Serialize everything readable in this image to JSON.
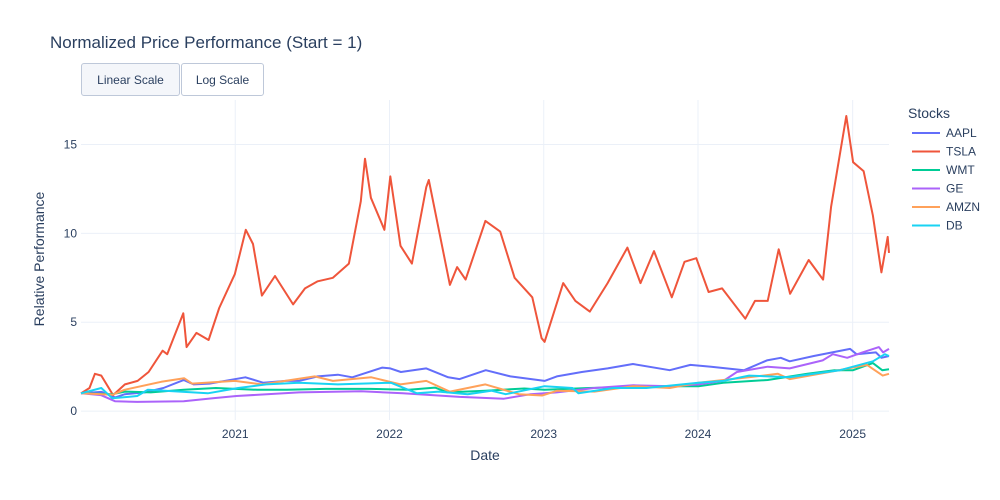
{
  "chart_data": {
    "type": "line",
    "title": "Normalized Price Performance (Start = 1)",
    "xlabel": "Date",
    "ylabel": "Relative Performance",
    "xlim": [
      "2020-01-02",
      "2025-03-28"
    ],
    "ylim": [
      -0.5,
      17.5
    ],
    "x_ticks": [
      "2021",
      "2022",
      "2023",
      "2024",
      "2025"
    ],
    "y_ticks": [
      0,
      5,
      10,
      15
    ],
    "grid": true,
    "legend": {
      "title": "Stocks",
      "placement": "right"
    },
    "buttons": [
      "Linear Scale",
      "Log Scale"
    ],
    "active_button": "Linear Scale",
    "series": [
      {
        "name": "AAPL",
        "color": "#636efa",
        "points": [
          [
            "2020-01-02",
            1.0
          ],
          [
            "2020-02-20",
            1.08
          ],
          [
            "2020-03-23",
            0.77
          ],
          [
            "2020-04-15",
            0.95
          ],
          [
            "2020-06-01",
            1.05
          ],
          [
            "2020-07-15",
            1.3
          ],
          [
            "2020-09-01",
            1.75
          ],
          [
            "2020-09-25",
            1.5
          ],
          [
            "2020-11-01",
            1.55
          ],
          [
            "2021-01-25",
            1.9
          ],
          [
            "2021-03-08",
            1.6
          ],
          [
            "2021-05-01",
            1.7
          ],
          [
            "2021-06-01",
            1.7
          ],
          [
            "2021-07-15",
            1.95
          ],
          [
            "2021-09-01",
            2.05
          ],
          [
            "2021-10-05",
            1.9
          ],
          [
            "2021-12-15",
            2.45
          ],
          [
            "2022-01-03",
            2.4
          ],
          [
            "2022-01-28",
            2.2
          ],
          [
            "2022-03-29",
            2.4
          ],
          [
            "2022-05-20",
            1.9
          ],
          [
            "2022-06-16",
            1.8
          ],
          [
            "2022-08-17",
            2.3
          ],
          [
            "2022-10-14",
            1.95
          ],
          [
            "2023-01-03",
            1.7
          ],
          [
            "2023-02-01",
            1.95
          ],
          [
            "2023-04-01",
            2.2
          ],
          [
            "2023-06-01",
            2.4
          ],
          [
            "2023-07-31",
            2.65
          ],
          [
            "2023-10-26",
            2.3
          ],
          [
            "2023-12-14",
            2.6
          ],
          [
            "2024-02-01",
            2.5
          ],
          [
            "2024-04-19",
            2.3
          ],
          [
            "2024-06-12",
            2.85
          ],
          [
            "2024-07-15",
            3.0
          ],
          [
            "2024-08-05",
            2.8
          ],
          [
            "2024-10-01",
            3.1
          ],
          [
            "2024-12-26",
            3.5
          ],
          [
            "2025-01-10",
            3.2
          ],
          [
            "2025-02-25",
            3.3
          ],
          [
            "2025-03-10",
            3.0
          ],
          [
            "2025-03-28",
            3.1
          ]
        ]
      },
      {
        "name": "TSLA",
        "color": "#ef553b",
        "points": [
          [
            "2020-01-02",
            1.0
          ],
          [
            "2020-01-22",
            1.3
          ],
          [
            "2020-02-04",
            2.1
          ],
          [
            "2020-02-19",
            2.0
          ],
          [
            "2020-03-18",
            0.9
          ],
          [
            "2020-04-15",
            1.5
          ],
          [
            "2020-05-15",
            1.7
          ],
          [
            "2020-06-10",
            2.2
          ],
          [
            "2020-07-13",
            3.4
          ],
          [
            "2020-07-24",
            3.2
          ],
          [
            "2020-08-31",
            5.5
          ],
          [
            "2020-09-08",
            3.6
          ],
          [
            "2020-10-01",
            4.4
          ],
          [
            "2020-10-30",
            4.0
          ],
          [
            "2020-11-24",
            5.8
          ],
          [
            "2020-12-31",
            7.7
          ],
          [
            "2021-01-26",
            10.2
          ],
          [
            "2021-02-12",
            9.4
          ],
          [
            "2021-03-05",
            6.5
          ],
          [
            "2021-04-05",
            7.6
          ],
          [
            "2021-05-18",
            6.0
          ],
          [
            "2021-06-15",
            6.9
          ],
          [
            "2021-07-15",
            7.3
          ],
          [
            "2021-08-20",
            7.5
          ],
          [
            "2021-09-27",
            8.3
          ],
          [
            "2021-10-25",
            11.8
          ],
          [
            "2021-11-04",
            14.2
          ],
          [
            "2021-11-18",
            12.0
          ],
          [
            "2021-12-20",
            10.2
          ],
          [
            "2022-01-03",
            13.2
          ],
          [
            "2022-01-27",
            9.3
          ],
          [
            "2022-02-23",
            8.3
          ],
          [
            "2022-03-29",
            12.6
          ],
          [
            "2022-04-04",
            13.0
          ],
          [
            "2022-04-26",
            10.4
          ],
          [
            "2022-05-24",
            7.1
          ],
          [
            "2022-06-10",
            8.1
          ],
          [
            "2022-06-30",
            7.4
          ],
          [
            "2022-08-16",
            10.7
          ],
          [
            "2022-09-20",
            10.1
          ],
          [
            "2022-10-24",
            7.5
          ],
          [
            "2022-12-05",
            6.4
          ],
          [
            "2022-12-27",
            4.1
          ],
          [
            "2023-01-03",
            3.9
          ],
          [
            "2023-02-16",
            7.2
          ],
          [
            "2023-03-17",
            6.2
          ],
          [
            "2023-04-20",
            5.6
          ],
          [
            "2023-06-01",
            7.2
          ],
          [
            "2023-07-18",
            9.2
          ],
          [
            "2023-08-18",
            7.2
          ],
          [
            "2023-09-19",
            9.0
          ],
          [
            "2023-10-31",
            6.4
          ],
          [
            "2023-11-30",
            8.4
          ],
          [
            "2023-12-28",
            8.6
          ],
          [
            "2024-01-26",
            6.7
          ],
          [
            "2024-02-27",
            6.9
          ],
          [
            "2024-04-22",
            5.2
          ],
          [
            "2024-05-15",
            6.2
          ],
          [
            "2024-06-14",
            6.2
          ],
          [
            "2024-07-10",
            9.1
          ],
          [
            "2024-08-06",
            6.6
          ],
          [
            "2024-09-19",
            8.5
          ],
          [
            "2024-10-23",
            7.4
          ],
          [
            "2024-11-11",
            11.5
          ],
          [
            "2024-12-17",
            16.6
          ],
          [
            "2025-01-02",
            14.0
          ],
          [
            "2025-01-27",
            13.5
          ],
          [
            "2025-02-18",
            11.0
          ],
          [
            "2025-03-10",
            7.8
          ],
          [
            "2025-03-25",
            9.8
          ],
          [
            "2025-03-28",
            8.9
          ]
        ]
      },
      {
        "name": "WMT",
        "color": "#00cc96",
        "points": [
          [
            "2020-01-02",
            1.0
          ],
          [
            "2020-03-16",
            0.95
          ],
          [
            "2020-04-15",
            1.1
          ],
          [
            "2020-06-15",
            1.05
          ],
          [
            "2020-09-01",
            1.2
          ],
          [
            "2020-11-16",
            1.3
          ],
          [
            "2021-02-22",
            1.2
          ],
          [
            "2021-05-03",
            1.2
          ],
          [
            "2021-08-02",
            1.25
          ],
          [
            "2021-11-17",
            1.25
          ],
          [
            "2022-02-16",
            1.2
          ],
          [
            "2022-04-19",
            1.32
          ],
          [
            "2022-05-18",
            1.05
          ],
          [
            "2022-08-16",
            1.15
          ],
          [
            "2022-11-16",
            1.27
          ],
          [
            "2023-01-03",
            1.2
          ],
          [
            "2023-04-17",
            1.3
          ],
          [
            "2023-07-14",
            1.35
          ],
          [
            "2023-10-16",
            1.4
          ],
          [
            "2024-01-02",
            1.4
          ],
          [
            "2024-03-01",
            1.6
          ],
          [
            "2024-06-14",
            1.75
          ],
          [
            "2024-09-16",
            2.1
          ],
          [
            "2024-11-19",
            2.3
          ],
          [
            "2025-01-02",
            2.3
          ],
          [
            "2025-02-18",
            2.7
          ],
          [
            "2025-03-12",
            2.3
          ],
          [
            "2025-03-28",
            2.35
          ]
        ]
      },
      {
        "name": "GE",
        "color": "#ab63fa",
        "points": [
          [
            "2020-01-02",
            1.0
          ],
          [
            "2020-02-18",
            0.9
          ],
          [
            "2020-03-23",
            0.55
          ],
          [
            "2020-05-14",
            0.52
          ],
          [
            "2020-09-01",
            0.55
          ],
          [
            "2020-11-09",
            0.72
          ],
          [
            "2021-01-04",
            0.85
          ],
          [
            "2021-06-01",
            1.05
          ],
          [
            "2021-10-26",
            1.12
          ],
          [
            "2022-02-01",
            1.0
          ],
          [
            "2022-06-16",
            0.8
          ],
          [
            "2022-09-29",
            0.7
          ],
          [
            "2022-12-01",
            0.95
          ],
          [
            "2023-02-01",
            1.05
          ],
          [
            "2023-05-01",
            1.3
          ],
          [
            "2023-08-01",
            1.45
          ],
          [
            "2023-11-01",
            1.4
          ],
          [
            "2024-01-02",
            1.5
          ],
          [
            "2024-03-01",
            1.7
          ],
          [
            "2024-04-02",
            2.2
          ],
          [
            "2024-06-14",
            2.5
          ],
          [
            "2024-08-05",
            2.4
          ],
          [
            "2024-10-22",
            2.85
          ],
          [
            "2024-11-15",
            3.2
          ],
          [
            "2024-12-19",
            3.0
          ],
          [
            "2025-01-24",
            3.3
          ],
          [
            "2025-03-04",
            3.6
          ],
          [
            "2025-03-14",
            3.3
          ],
          [
            "2025-03-28",
            3.5
          ]
        ]
      },
      {
        "name": "AMZN",
        "color": "#ffa15a",
        "points": [
          [
            "2020-01-02",
            1.0
          ],
          [
            "2020-03-16",
            0.92
          ],
          [
            "2020-04-14",
            1.2
          ],
          [
            "2020-07-10",
            1.65
          ],
          [
            "2020-09-02",
            1.85
          ],
          [
            "2020-09-21",
            1.55
          ],
          [
            "2020-12-31",
            1.7
          ],
          [
            "2021-03-05",
            1.5
          ],
          [
            "2021-07-08",
            1.95
          ],
          [
            "2021-08-20",
            1.7
          ],
          [
            "2021-11-19",
            1.9
          ],
          [
            "2022-01-27",
            1.5
          ],
          [
            "2022-03-29",
            1.7
          ],
          [
            "2022-05-24",
            1.1
          ],
          [
            "2022-08-16",
            1.5
          ],
          [
            "2022-11-03",
            0.95
          ],
          [
            "2022-12-28",
            0.88
          ],
          [
            "2023-02-02",
            1.15
          ],
          [
            "2023-05-01",
            1.1
          ],
          [
            "2023-07-31",
            1.4
          ],
          [
            "2023-10-26",
            1.3
          ],
          [
            "2024-01-02",
            1.6
          ],
          [
            "2024-04-30",
            1.9
          ],
          [
            "2024-07-08",
            2.1
          ],
          [
            "2024-08-05",
            1.8
          ],
          [
            "2024-11-07",
            2.2
          ],
          [
            "2025-02-04",
            2.6
          ],
          [
            "2025-03-13",
            2.0
          ],
          [
            "2025-03-28",
            2.1
          ]
        ]
      },
      {
        "name": "DB",
        "color": "#19d3f3",
        "points": [
          [
            "2020-01-02",
            1.0
          ],
          [
            "2020-02-19",
            1.3
          ],
          [
            "2020-03-16",
            0.72
          ],
          [
            "2020-05-14",
            0.85
          ],
          [
            "2020-06-08",
            1.2
          ],
          [
            "2020-10-28",
            1.0
          ],
          [
            "2021-01-08",
            1.3
          ],
          [
            "2021-03-15",
            1.5
          ],
          [
            "2021-06-01",
            1.6
          ],
          [
            "2021-09-01",
            1.5
          ],
          [
            "2022-01-04",
            1.6
          ],
          [
            "2022-03-07",
            1.0
          ],
          [
            "2022-04-28",
            1.1
          ],
          [
            "2022-07-05",
            0.95
          ],
          [
            "2022-08-30",
            1.15
          ],
          [
            "2022-10-03",
            0.95
          ],
          [
            "2023-01-03",
            1.4
          ],
          [
            "2023-03-10",
            1.3
          ],
          [
            "2023-03-24",
            1.0
          ],
          [
            "2023-06-15",
            1.3
          ],
          [
            "2023-09-01",
            1.3
          ],
          [
            "2024-01-02",
            1.6
          ],
          [
            "2024-03-01",
            1.7
          ],
          [
            "2024-05-01",
            2.0
          ],
          [
            "2024-08-05",
            1.9
          ],
          [
            "2024-10-01",
            2.1
          ],
          [
            "2024-12-02",
            2.3
          ],
          [
            "2025-02-18",
            2.8
          ],
          [
            "2025-03-18",
            3.2
          ],
          [
            "2025-03-28",
            3.1
          ]
        ]
      }
    ]
  }
}
